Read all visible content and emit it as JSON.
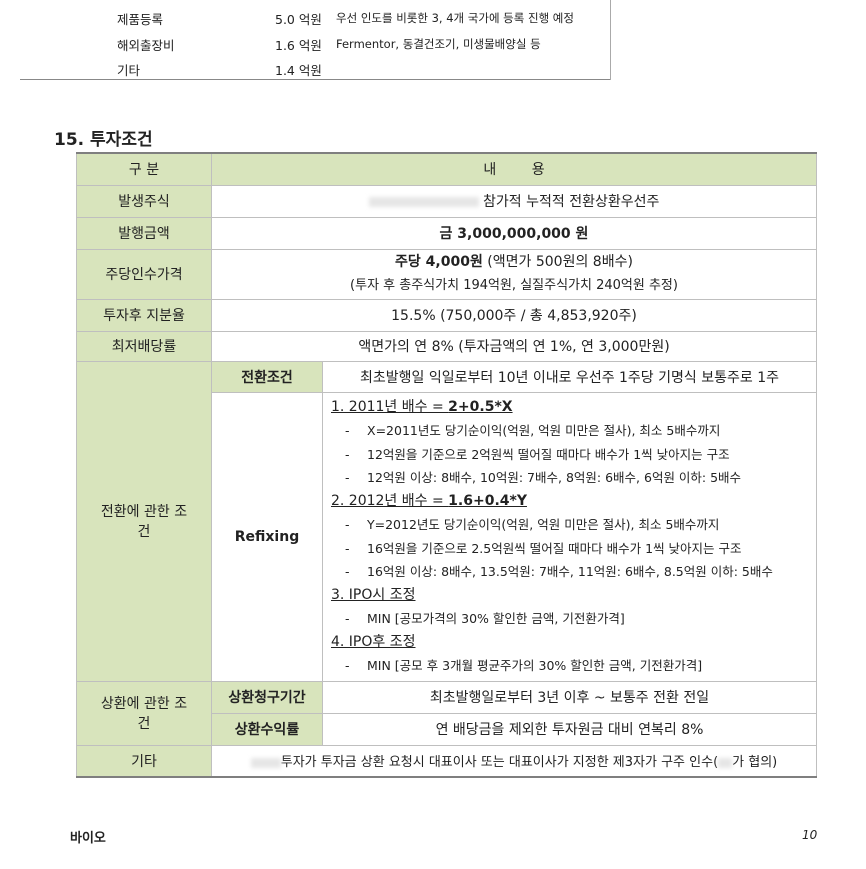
{
  "budget_rows": [
    {
      "item": "제품등록",
      "amount": "5.0 억원",
      "note": "우선 인도를 비롯한 3, 4개 국가에 등록 진행 예정"
    },
    {
      "item": "해외출장비",
      "amount": "1.6 억원",
      "note": "Fermentor, 동결건조기, 미생물배양실 등"
    },
    {
      "item": "기타",
      "amount": "1.4 억원",
      "note": ""
    }
  ],
  "section_title": "15. 투자조건",
  "table": {
    "header": {
      "col1": "구 분",
      "col2": "내        용"
    },
    "stock": {
      "label": "발생주식",
      "value": "참가적 누적적 전환상환우선주"
    },
    "amount": {
      "label": "발행금액",
      "value": "금 3,000,000,000 원"
    },
    "price": {
      "label": "주당인수가격",
      "value_bold": "주당 4,000원",
      "value_rest": " (액면가 500원의 8배수)",
      "note": "(투자 후 총주식가치 194억원, 실질주식가치 240억원 추정)"
    },
    "stake": {
      "label": "투자후 지분율",
      "value": "15.5% (750,000주 / 총 4,853,920주)"
    },
    "dividend": {
      "label": "최저배당률",
      "value": "액면가의 연 8% (투자금액의 연 1%, 연 3,000만원)"
    },
    "conversion": {
      "label": "전환에 관한 조건",
      "cond_label": "전환조건",
      "cond_value": "최초발행일 익일로부터 10년 이내로 우선주 1주당 기명식 보통주로 1주",
      "refix_label": "Refixing",
      "refix": [
        {
          "type": "h",
          "text": "1. 2011년 배수 = ",
          "bold": "2+0.5*X"
        },
        {
          "type": "d",
          "text": "X=2011년도 당기순이익(억원, 억원 미만은 절사), 최소 5배수까지"
        },
        {
          "type": "d",
          "text": "12억원을 기준으로 2억원씩 떨어질 때마다 배수가 1씩 낮아지는 구조"
        },
        {
          "type": "d",
          "text": "12억원 이상: 8배수, 10억원: 7배수, 8억원: 6배수, 6억원 이하: 5배수"
        },
        {
          "type": "h",
          "text": "2. 2012년 배수 = ",
          "bold": "1.6+0.4*Y"
        },
        {
          "type": "d",
          "text": "Y=2012년도 당기순이익(억원, 억원 미만은 절사), 최소 5배수까지"
        },
        {
          "type": "d",
          "text": "16억원을 기준으로 2.5억원씩 떨어질 때마다 배수가 1씩 낮아지는 구조"
        },
        {
          "type": "d",
          "text": "16억원 이상: 8배수, 13.5억원: 7배수, 11억원: 6배수, 8.5억원 이하: 5배수"
        },
        {
          "type": "h",
          "text": "3. IPO시 조정",
          "bold": ""
        },
        {
          "type": "d",
          "text": "MIN [공모가격의 30% 할인한 금액, 기전환가격]"
        },
        {
          "type": "h",
          "text": "4. IPO후 조정",
          "bold": ""
        },
        {
          "type": "d",
          "text": "MIN [공모 후 3개월 평균주가의 30% 할인한 금액, 기전환가격]"
        }
      ]
    },
    "redemption": {
      "label": "상환에 관한 조건",
      "period_label": "상환청구기간",
      "period_value": "최초발행일로부터 3년 이후 ~ 보통주 전환 전일",
      "yield_label": "상환수익률",
      "yield_value": "연 배당금을 제외한 투자원금 대비 연복리 8%"
    },
    "other": {
      "label": "기타",
      "value": "투자가 투자금 상환 요청시 대표이사 또는 대표이사가 지정한 제3자가 구주 인수(",
      "value_end": "가 협의)"
    }
  },
  "footer": {
    "company": "바이오",
    "page": "10"
  },
  "colors": {
    "label_bg": "#d8e4bc",
    "border": "#bfbfbf"
  }
}
